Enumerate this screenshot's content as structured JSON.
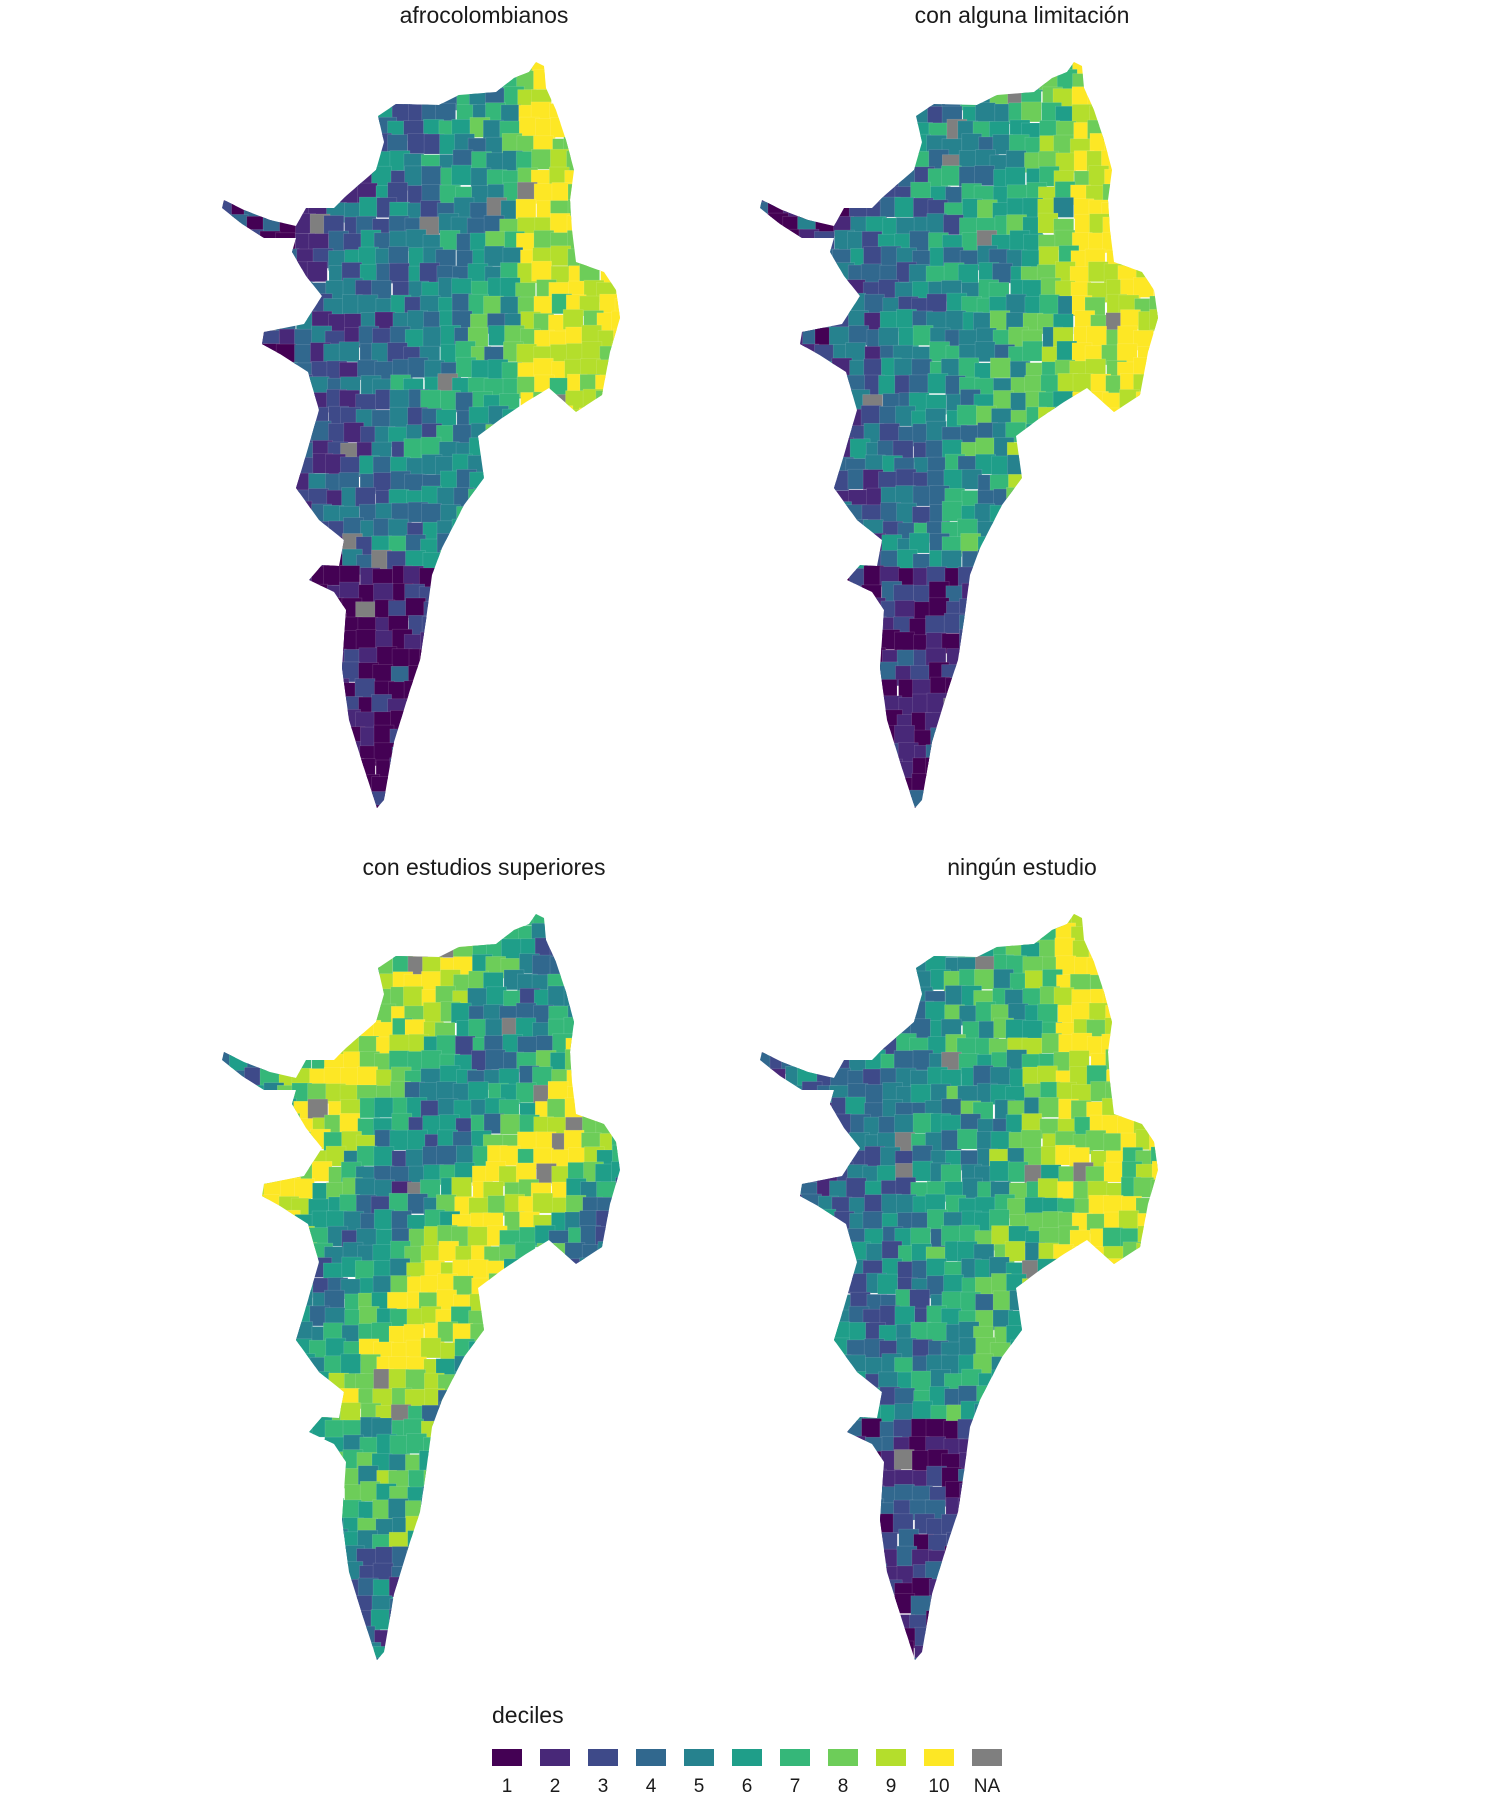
{
  "panels": [
    {
      "id": "afro",
      "title": "afrocolombianos"
    },
    {
      "id": "limit",
      "title": "con alguna limitación"
    },
    {
      "id": "sup",
      "title": "con estudios superiores"
    },
    {
      "id": "none",
      "title": "ningún estudio"
    }
  ],
  "legend": {
    "title": "deciles",
    "items": [
      {
        "label": "1",
        "color": "#440154"
      },
      {
        "label": "2",
        "color": "#482878"
      },
      {
        "label": "3",
        "color": "#3E4A89"
      },
      {
        "label": "4",
        "color": "#31688E"
      },
      {
        "label": "5",
        "color": "#26828E"
      },
      {
        "label": "6",
        "color": "#1F9E89"
      },
      {
        "label": "7",
        "color": "#35B779"
      },
      {
        "label": "8",
        "color": "#6DCD59"
      },
      {
        "label": "9",
        "color": "#B4DE2C"
      },
      {
        "label": "10",
        "color": "#FDE725"
      },
      {
        "label": "NA",
        "color": "#7F7F7F"
      }
    ]
  }
}
